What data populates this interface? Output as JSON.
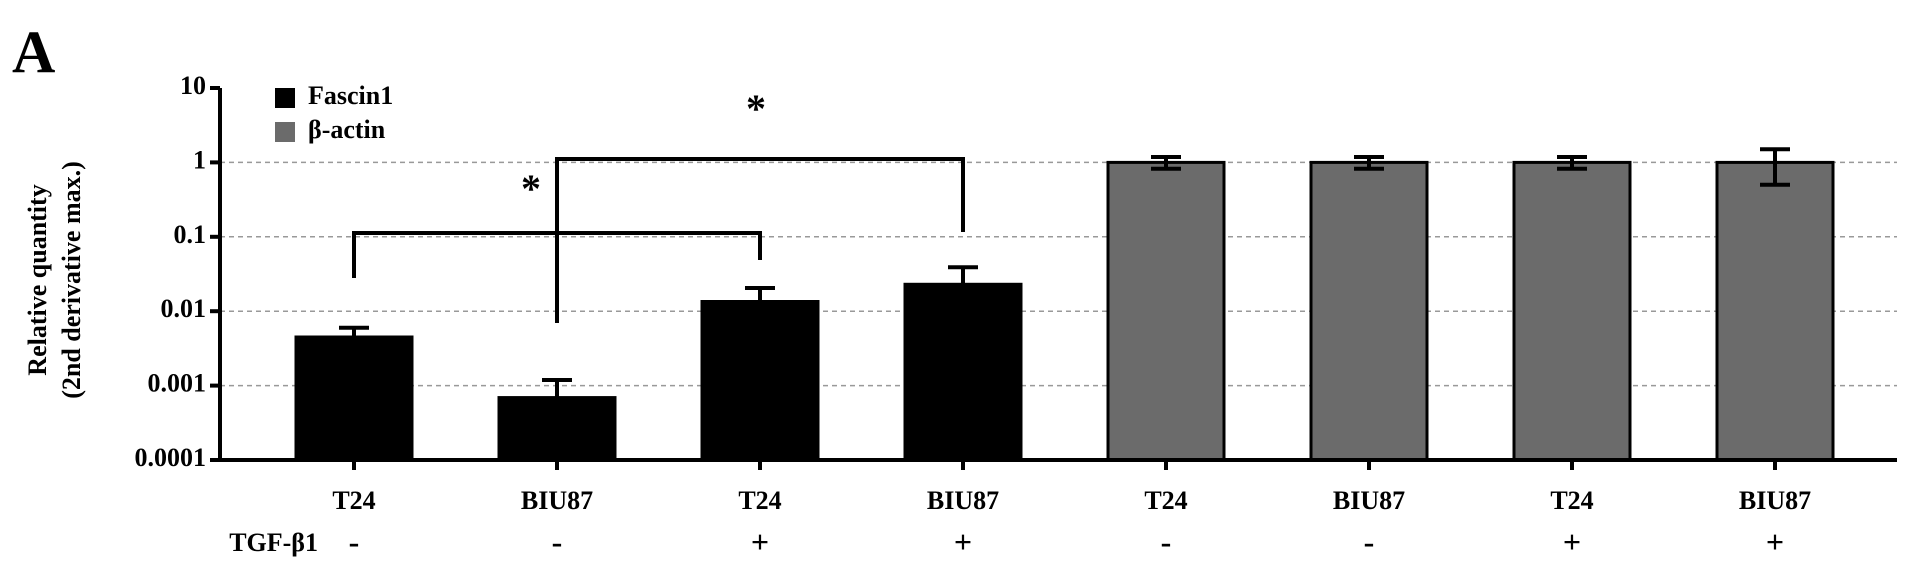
{
  "chart_data": {
    "type": "bar",
    "panel_label": "A",
    "ylabel": [
      "Relative quantity",
      "(2nd derivative max.)"
    ],
    "categories": [
      "T24",
      "BIU87",
      "T24",
      "BIU87",
      "T24",
      "BIU87",
      "T24",
      "BIU87"
    ],
    "treatment_label": "TGF-β1",
    "treatment": [
      "-",
      "-",
      "+",
      "+",
      "-",
      "-",
      "+",
      "+"
    ],
    "series": [
      {
        "name": "Fascin1",
        "color": "#000000",
        "values": [
          0.0045,
          0.00069,
          0.0135,
          0.023,
          null,
          null,
          null,
          null
        ],
        "errors": [
          0.0015,
          0.0005,
          0.007,
          0.016,
          null,
          null,
          null,
          null
        ]
      },
      {
        "name": "β-actin",
        "color": "#6b6b6b",
        "values": [
          null,
          null,
          null,
          null,
          1,
          1,
          1,
          1
        ],
        "errors": [
          null,
          null,
          null,
          null,
          0.18,
          0.18,
          0.18,
          0.5
        ]
      }
    ],
    "annotations": [
      "*",
      "*"
    ],
    "log_scale": true,
    "ylim": [
      0.0001,
      10
    ],
    "yticks": [
      0.0001,
      0.001,
      0.01,
      0.1,
      1,
      10
    ],
    "grid": true,
    "legend": "upper left"
  }
}
